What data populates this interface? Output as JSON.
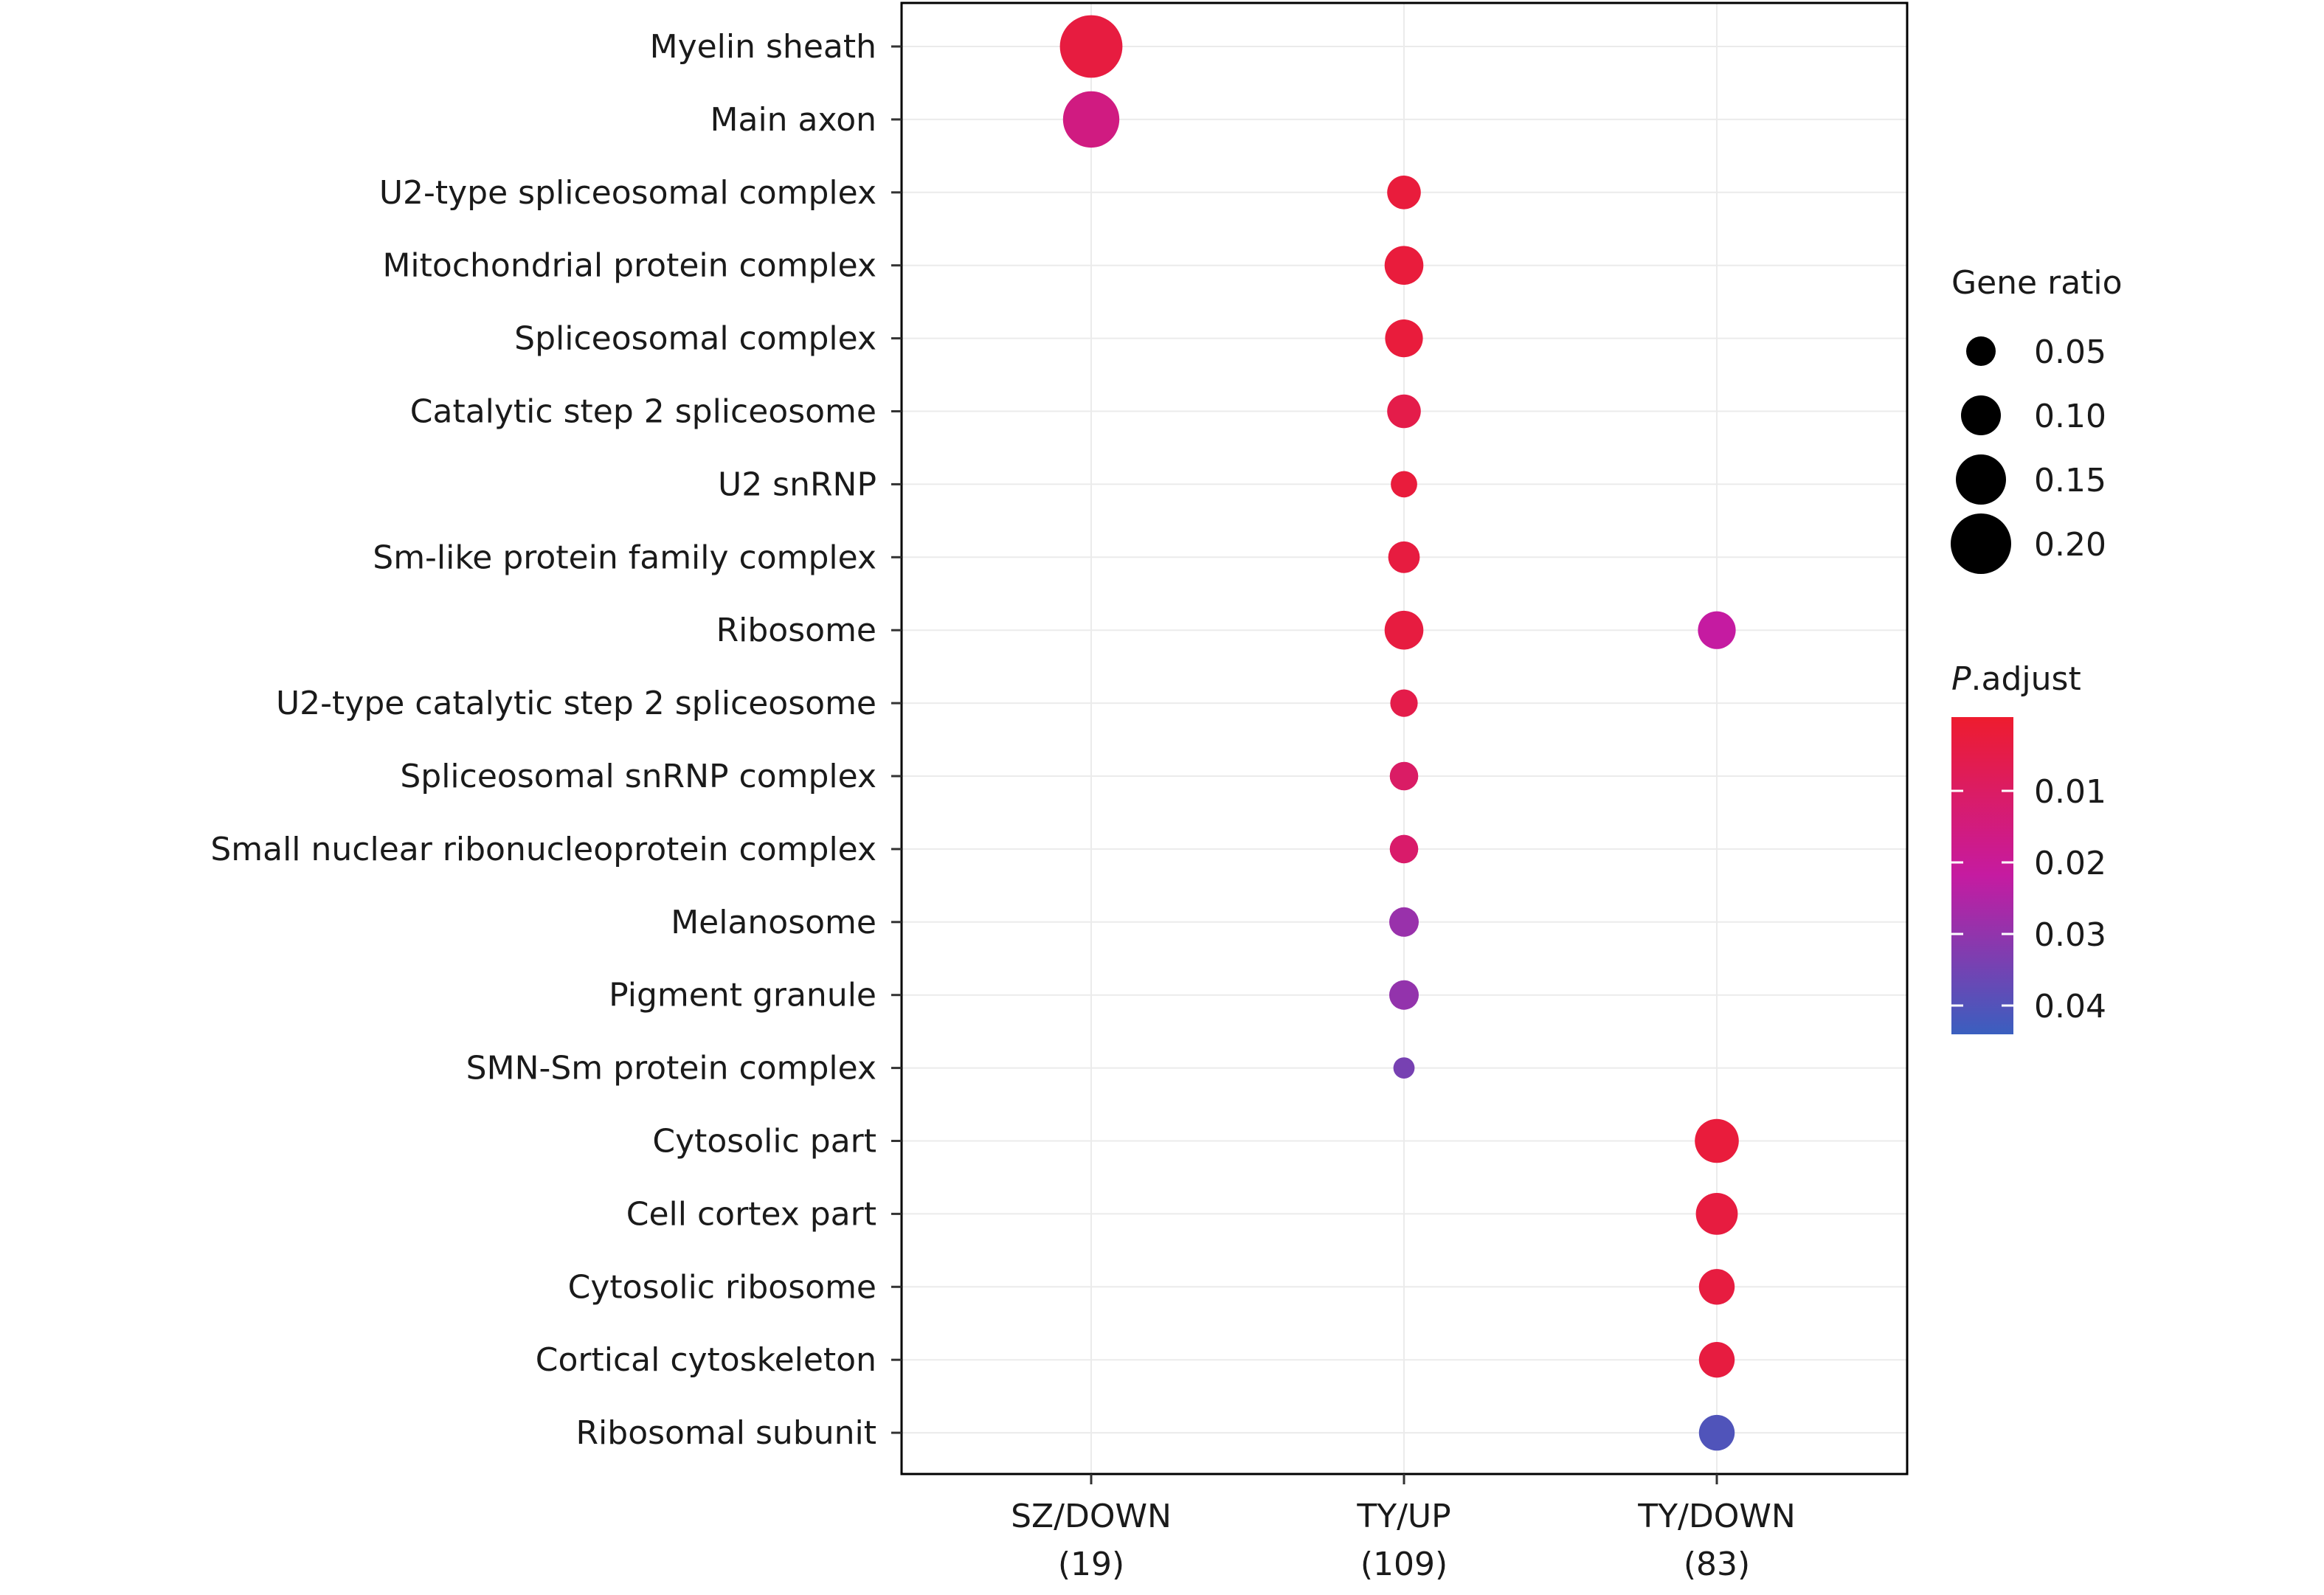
{
  "chart_data": {
    "type": "scatter",
    "categories": [
      "Myelin sheath",
      "Main axon",
      "U2-type spliceosomal complex",
      "Mitochondrial protein complex",
      "Spliceosomal complex",
      "Catalytic step 2 spliceosome",
      "U2 snRNP",
      "Sm-like protein family complex",
      "Ribosome",
      "U2-type catalytic step 2 spliceosome",
      "Spliceosomal snRNP complex",
      "Small nuclear ribonucleoprotein complex",
      "Melanosome",
      "Pigment granule",
      "SMN-Sm protein complex",
      "Cytosolic part",
      "Cell cortex part",
      "Cytosolic ribosome",
      "Cortical cytoskeleton",
      "Ribosomal subunit"
    ],
    "groups": [
      {
        "label": "SZ/DOWN",
        "count": "(19)"
      },
      {
        "label": "TY/UP",
        "count": "(109)"
      },
      {
        "label": "TY/DOWN",
        "count": "(83)"
      }
    ],
    "points": [
      {
        "category": "Myelin sheath",
        "group": "SZ/DOWN",
        "gene_ratio": 0.21,
        "p_adjust": 0.004
      },
      {
        "category": "Main axon",
        "group": "SZ/DOWN",
        "gene_ratio": 0.18,
        "p_adjust": 0.018
      },
      {
        "category": "U2-type spliceosomal complex",
        "group": "TY/UP",
        "gene_ratio": 0.07,
        "p_adjust": 0.003
      },
      {
        "category": "Mitochondrial protein complex",
        "group": "TY/UP",
        "gene_ratio": 0.095,
        "p_adjust": 0.003
      },
      {
        "category": "Spliceosomal complex",
        "group": "TY/UP",
        "gene_ratio": 0.09,
        "p_adjust": 0.003
      },
      {
        "category": "Catalytic step 2 spliceosome",
        "group": "TY/UP",
        "gene_ratio": 0.07,
        "p_adjust": 0.006
      },
      {
        "category": "U2 snRNP",
        "group": "TY/UP",
        "gene_ratio": 0.035,
        "p_adjust": 0.003
      },
      {
        "category": "Sm-like protein family complex",
        "group": "TY/UP",
        "gene_ratio": 0.06,
        "p_adjust": 0.004
      },
      {
        "category": "Ribosome",
        "group": "TY/UP",
        "gene_ratio": 0.095,
        "p_adjust": 0.004
      },
      {
        "category": "U2-type catalytic step 2 spliceosome",
        "group": "TY/UP",
        "gene_ratio": 0.04,
        "p_adjust": 0.006
      },
      {
        "category": "Spliceosomal snRNP complex",
        "group": "TY/UP",
        "gene_ratio": 0.045,
        "p_adjust": 0.012
      },
      {
        "category": "Small nuclear ribonucleoprotein complex",
        "group": "TY/UP",
        "gene_ratio": 0.045,
        "p_adjust": 0.013
      },
      {
        "category": "Melanosome",
        "group": "TY/UP",
        "gene_ratio": 0.05,
        "p_adjust": 0.033
      },
      {
        "category": "Pigment granule",
        "group": "TY/UP",
        "gene_ratio": 0.05,
        "p_adjust": 0.034
      },
      {
        "category": "SMN-Sm protein complex",
        "group": "TY/UP",
        "gene_ratio": 0.01,
        "p_adjust": 0.039
      },
      {
        "category": "Ribosome",
        "group": "TY/DOWN",
        "gene_ratio": 0.09,
        "p_adjust": 0.025
      },
      {
        "category": "Cytosolic part",
        "group": "TY/DOWN",
        "gene_ratio": 0.12,
        "p_adjust": 0.003
      },
      {
        "category": "Cell cortex part",
        "group": "TY/DOWN",
        "gene_ratio": 0.11,
        "p_adjust": 0.004
      },
      {
        "category": "Cytosolic ribosome",
        "group": "TY/DOWN",
        "gene_ratio": 0.08,
        "p_adjust": 0.004
      },
      {
        "category": "Cortical cytoskeleton",
        "group": "TY/DOWN",
        "gene_ratio": 0.08,
        "p_adjust": 0.004
      },
      {
        "category": "Ribosomal subunit",
        "group": "TY/DOWN",
        "gene_ratio": 0.08,
        "p_adjust": 0.046
      }
    ],
    "size_legend": {
      "title": "Gene ratio",
      "values": [
        0.05,
        0.1,
        0.15,
        0.2
      ],
      "labels": [
        "0.05",
        "0.10",
        "0.15",
        "0.20"
      ]
    },
    "color_legend": {
      "title_italic": "P",
      "title_rest": ".adjust",
      "range": [
        0.0,
        0.05
      ],
      "ticks": [
        0.01,
        0.02,
        0.03,
        0.04
      ],
      "tick_labels": [
        "0.01",
        "0.02",
        "0.03",
        "0.04"
      ],
      "colors": {
        "low": "#ee1c2e",
        "mid": "#c51ba1",
        "high": "#3a5fbf"
      }
    },
    "grid": true,
    "legend_position": "right"
  }
}
